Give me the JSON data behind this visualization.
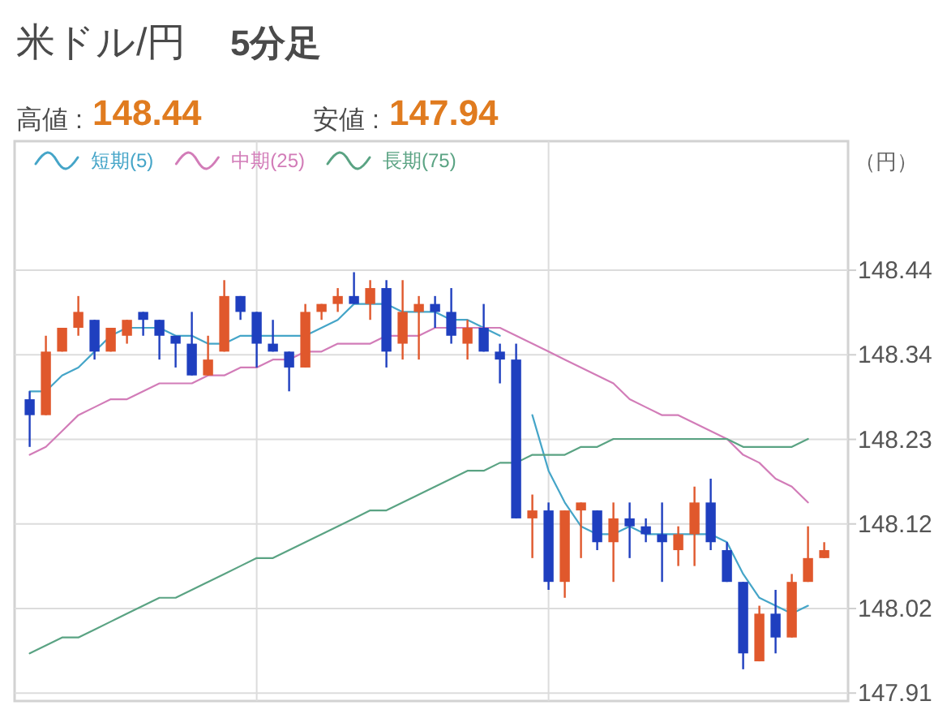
{
  "chart_data": {
    "type": "candlestick",
    "title": "米ドル/円",
    "subtitle": "5分足",
    "ylabel": "（円）",
    "annotations": [
      "高値 :",
      "148.44",
      "安値 :",
      "147.94"
    ],
    "categories": [
      null,
      null,
      null,
      null,
      null,
      null,
      null,
      null,
      null,
      null,
      null,
      null,
      null,
      null,
      null,
      null,
      null,
      null,
      null,
      null,
      null,
      null,
      null,
      null,
      null,
      null,
      null,
      null,
      null,
      null,
      null,
      null,
      null,
      null,
      null,
      null,
      null,
      null,
      null,
      null,
      null,
      null,
      null,
      null,
      null,
      null,
      null,
      null,
      null,
      null
    ],
    "ohlc": [
      [
        148.28,
        148.29,
        148.22,
        148.26
      ],
      [
        148.26,
        148.36,
        148.26,
        148.34
      ],
      [
        148.34,
        148.37,
        148.34,
        148.37
      ],
      [
        148.37,
        148.41,
        148.36,
        148.39
      ],
      [
        148.38,
        148.38,
        148.33,
        148.34
      ],
      [
        148.34,
        148.37,
        148.34,
        148.37
      ],
      [
        148.36,
        148.38,
        148.35,
        148.38
      ],
      [
        148.39,
        148.39,
        148.36,
        148.38
      ],
      [
        148.38,
        148.38,
        148.33,
        148.36
      ],
      [
        148.36,
        148.36,
        148.32,
        148.35
      ],
      [
        148.35,
        148.39,
        148.31,
        148.31
      ],
      [
        148.31,
        148.36,
        148.31,
        148.33
      ],
      [
        148.34,
        148.43,
        148.34,
        148.41
      ],
      [
        148.41,
        148.41,
        148.38,
        148.39
      ],
      [
        148.39,
        148.39,
        148.32,
        148.35
      ],
      [
        148.35,
        148.38,
        148.34,
        148.34
      ],
      [
        148.34,
        148.34,
        148.29,
        148.32
      ],
      [
        148.32,
        148.4,
        148.32,
        148.39
      ],
      [
        148.39,
        148.4,
        148.38,
        148.4
      ],
      [
        148.4,
        148.42,
        148.39,
        148.41
      ],
      [
        148.41,
        148.44,
        148.4,
        148.4
      ],
      [
        148.4,
        148.43,
        148.38,
        148.42
      ],
      [
        148.42,
        148.43,
        148.32,
        148.34
      ],
      [
        148.35,
        148.43,
        148.33,
        148.39
      ],
      [
        148.39,
        148.41,
        148.33,
        148.4
      ],
      [
        148.4,
        148.41,
        148.37,
        148.39
      ],
      [
        148.39,
        148.42,
        148.35,
        148.36
      ],
      [
        148.35,
        148.38,
        148.33,
        148.37
      ],
      [
        148.37,
        148.4,
        148.34,
        148.34
      ],
      [
        148.34,
        148.35,
        148.3,
        148.33
      ],
      [
        148.33,
        148.35,
        148.13,
        148.13
      ],
      [
        148.13,
        148.16,
        148.08,
        148.14
      ],
      [
        148.14,
        148.15,
        148.04,
        148.05
      ],
      [
        148.05,
        148.14,
        148.03,
        148.14
      ],
      [
        148.14,
        148.15,
        148.08,
        148.15
      ],
      [
        148.14,
        148.14,
        148.09,
        148.1
      ],
      [
        148.1,
        148.15,
        148.05,
        148.13
      ],
      [
        148.13,
        148.15,
        148.08,
        148.12
      ],
      [
        148.12,
        148.13,
        148.1,
        148.11
      ],
      [
        148.11,
        148.15,
        148.05,
        148.1
      ],
      [
        148.09,
        148.12,
        148.07,
        148.11
      ],
      [
        148.11,
        148.17,
        148.07,
        148.15
      ],
      [
        148.15,
        148.18,
        148.09,
        148.1
      ],
      [
        148.09,
        148.1,
        148.05,
        148.05
      ],
      [
        148.05,
        148.05,
        147.94,
        147.96
      ],
      [
        147.95,
        148.02,
        147.95,
        148.01
      ],
      [
        148.01,
        148.04,
        147.96,
        147.98
      ],
      [
        147.98,
        148.06,
        147.98,
        148.05
      ],
      [
        148.05,
        148.12,
        148.05,
        148.08
      ],
      [
        148.08,
        148.1,
        148.08,
        148.09
      ]
    ],
    "colors": [
      "#1f3fbf",
      "#e0582c",
      "#e0582c",
      "#e0582c",
      "#1f3fbf",
      "#e0582c",
      "#e0582c",
      "#1f3fbf",
      "#1f3fbf",
      "#1f3fbf",
      "#1f3fbf",
      "#e0582c",
      "#e0582c",
      "#1f3fbf",
      "#1f3fbf",
      "#1f3fbf",
      "#1f3fbf",
      "#e0582c",
      "#e0582c",
      "#e0582c",
      "#1f3fbf",
      "#e0582c",
      "#1f3fbf",
      "#e0582c",
      "#e0582c",
      "#1f3fbf",
      "#1f3fbf",
      "#e0582c",
      "#1f3fbf",
      "#1f3fbf",
      "#1f3fbf",
      "#e0582c",
      "#1f3fbf",
      "#e0582c",
      "#e0582c",
      "#1f3fbf",
      "#e0582c",
      "#1f3fbf",
      "#1f3fbf",
      "#1f3fbf",
      "#e0582c",
      "#e0582c",
      "#1f3fbf",
      "#1f3fbf",
      "#1f3fbf",
      "#e0582c",
      "#1f3fbf",
      "#e0582c",
      "#e0582c",
      "#e0582c"
    ],
    "series": [
      {
        "type": "line",
        "name": "短期(5)",
        "color": "#45a5c8",
        "values": [
          148.29,
          148.29,
          148.31,
          148.32,
          148.34,
          148.36,
          148.37,
          148.37,
          148.37,
          148.36,
          148.36,
          148.35,
          148.35,
          148.36,
          148.36,
          148.36,
          148.36,
          148.36,
          148.37,
          148.38,
          148.4,
          148.4,
          148.4,
          148.39,
          148.39,
          148.39,
          148.38,
          148.38,
          148.37,
          148.36,
          null,
          148.26,
          148.19,
          148.15,
          148.12,
          148.11,
          148.11,
          148.12,
          148.11,
          148.11,
          148.11,
          148.11,
          148.11,
          148.1,
          148.06,
          148.03,
          148.02,
          148.01,
          148.02,
          null
        ]
      },
      {
        "type": "line",
        "name": "中期(25)",
        "color": "#d27cb8",
        "values": [
          148.21,
          148.22,
          148.24,
          148.26,
          148.27,
          148.28,
          148.28,
          148.29,
          148.3,
          148.3,
          148.3,
          148.31,
          148.31,
          148.32,
          148.32,
          148.33,
          148.33,
          148.34,
          148.34,
          148.35,
          148.35,
          148.35,
          148.36,
          148.36,
          148.36,
          148.37,
          148.37,
          148.37,
          148.37,
          148.37,
          148.36,
          148.35,
          148.34,
          148.33,
          148.32,
          148.31,
          148.3,
          148.28,
          148.27,
          148.26,
          148.26,
          148.25,
          148.24,
          148.23,
          148.21,
          148.2,
          148.18,
          148.17,
          148.15,
          null
        ]
      },
      {
        "type": "line",
        "name": "長期(75)",
        "color": "#5aa383",
        "values": [
          147.96,
          147.97,
          147.98,
          147.98,
          147.99,
          148.0,
          148.01,
          148.02,
          148.03,
          148.03,
          148.04,
          148.05,
          148.06,
          148.07,
          148.08,
          148.08,
          148.09,
          148.1,
          148.11,
          148.12,
          148.13,
          148.14,
          148.14,
          148.15,
          148.16,
          148.17,
          148.18,
          148.19,
          148.19,
          148.2,
          148.2,
          148.21,
          148.21,
          148.21,
          148.22,
          148.22,
          148.23,
          148.23,
          148.23,
          148.23,
          148.23,
          148.23,
          148.23,
          148.23,
          148.22,
          148.22,
          148.22,
          148.22,
          148.23,
          null
        ]
      }
    ],
    "ylim": [
      147.9,
      148.605
    ],
    "yticks": [
      {
        "value": 148.4425,
        "label": "148.44"
      },
      {
        "value": 148.336,
        "label": "148.34"
      },
      {
        "value": 148.2295,
        "label": "148.23"
      },
      {
        "value": 148.123,
        "label": "148.12"
      },
      {
        "value": 148.0165,
        "label": "148.02"
      },
      147.91
    ],
    "grid": true,
    "legend": "top left",
    "tick_labels": "y"
  }
}
